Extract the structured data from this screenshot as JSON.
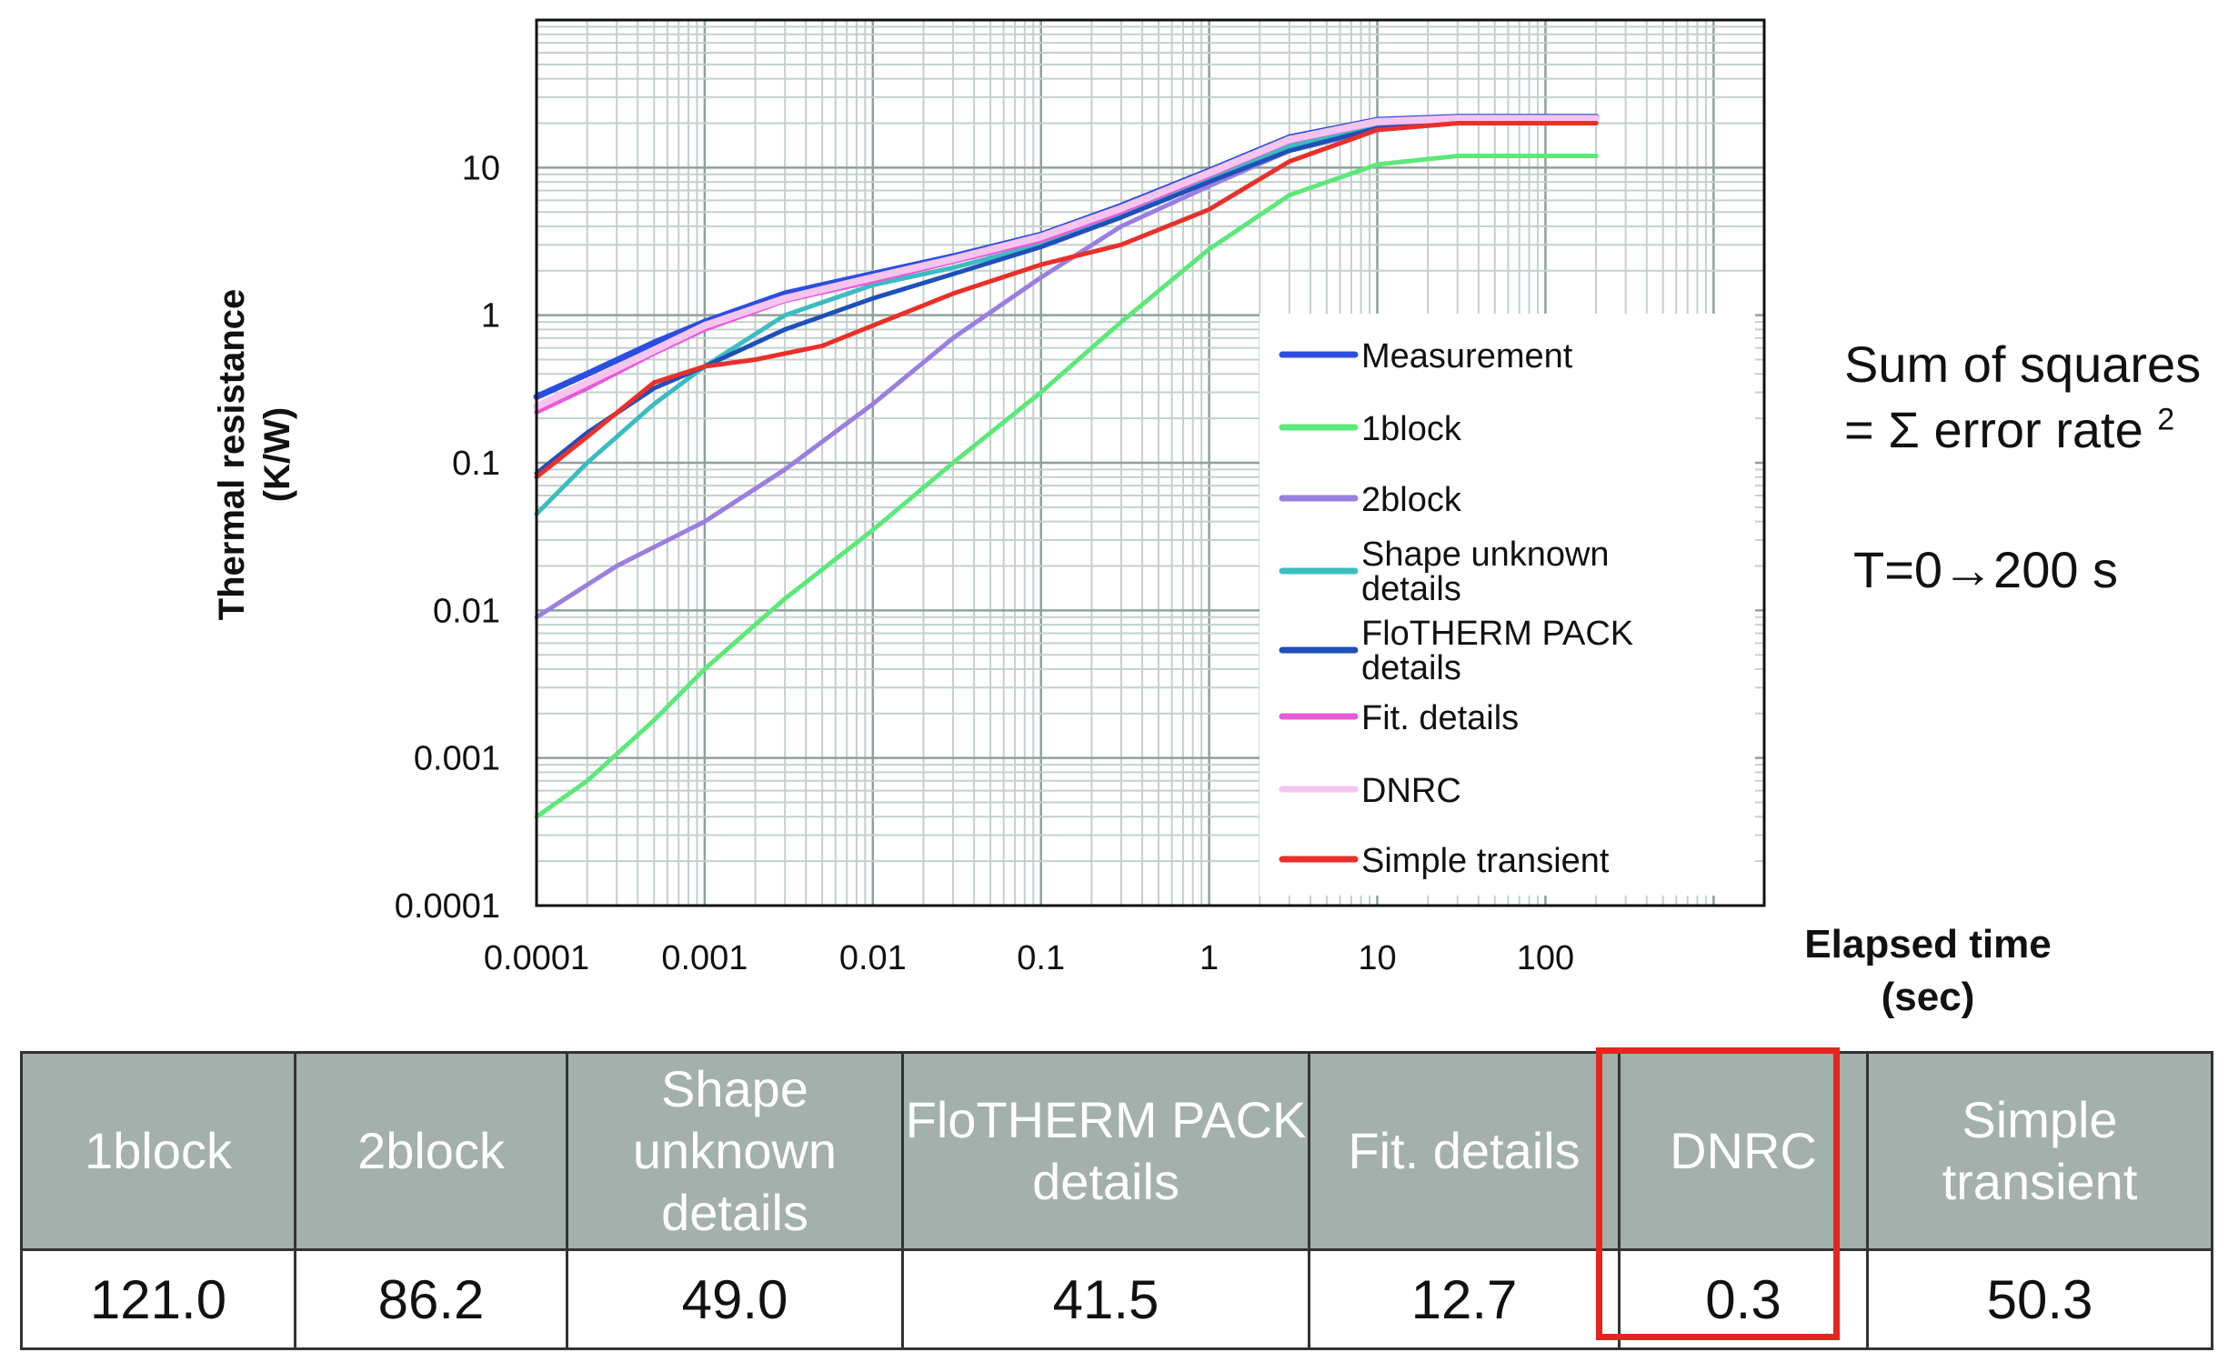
{
  "chart_data": {
    "type": "line",
    "xscale": "log",
    "yscale": "log",
    "xlim": [
      0.0001,
      2000
    ],
    "ylim": [
      0.0001,
      100
    ],
    "xticks": [
      0.0001,
      0.001,
      0.01,
      0.1,
      1,
      10,
      100
    ],
    "xtick_labels": [
      "0.0001",
      "0.001",
      "0.01",
      "0.1",
      "1",
      "10",
      "100"
    ],
    "yticks": [
      0.0001,
      0.001,
      0.01,
      0.1,
      1,
      10
    ],
    "ytick_labels": [
      "0.0001",
      "0.001",
      "0.01",
      "0.1",
      "1",
      "10"
    ],
    "xlabel": "Elapsed time (sec)",
    "ylabel_lines": [
      "Thermal resistance",
      "(K/W)"
    ],
    "grid": true,
    "legend_position": "bottom-right",
    "series": [
      {
        "name": "Measurement",
        "color": "#2b4de0",
        "x": [
          0.0001,
          0.0002,
          0.0005,
          0.001,
          0.003,
          0.01,
          0.03,
          0.1,
          0.3,
          1,
          3,
          10,
          30,
          100,
          200
        ],
        "y": [
          0.28,
          0.4,
          0.65,
          0.9,
          1.4,
          1.9,
          2.5,
          3.5,
          5.5,
          9.5,
          16,
          21,
          22,
          22,
          22
        ]
      },
      {
        "name": "1block",
        "color": "#5ce87a",
        "x": [
          0.0001,
          0.0002,
          0.0005,
          0.001,
          0.003,
          0.01,
          0.03,
          0.1,
          0.3,
          1,
          3,
          10,
          30,
          100,
          200
        ],
        "y": [
          0.0004,
          0.0007,
          0.0018,
          0.004,
          0.012,
          0.035,
          0.1,
          0.3,
          0.9,
          2.8,
          6.5,
          10.5,
          12,
          12,
          12
        ]
      },
      {
        "name": "2block",
        "color": "#9b7fe0",
        "x": [
          0.0001,
          0.0003,
          0.001,
          0.003,
          0.01,
          0.03,
          0.1,
          0.3,
          1,
          3,
          10,
          30,
          100,
          200
        ],
        "y": [
          0.009,
          0.02,
          0.04,
          0.09,
          0.25,
          0.7,
          1.8,
          4,
          7.5,
          13,
          18,
          20,
          20,
          20
        ]
      },
      {
        "name": "Shape unknown details",
        "color": "#3cbcc0",
        "x": [
          0.0001,
          0.0002,
          0.0005,
          0.001,
          0.003,
          0.01,
          0.03,
          0.1,
          0.3,
          1,
          3,
          10,
          30,
          100,
          200
        ],
        "y": [
          0.045,
          0.1,
          0.25,
          0.45,
          1.0,
          1.6,
          2.1,
          3.0,
          4.8,
          8.5,
          14,
          19,
          20,
          20,
          20
        ]
      },
      {
        "name": "FloTHERM PACK details",
        "color": "#1f4fb8",
        "x": [
          0.0001,
          0.0002,
          0.0005,
          0.001,
          0.003,
          0.01,
          0.03,
          0.1,
          0.3,
          1,
          3,
          10,
          30,
          100,
          200
        ],
        "y": [
          0.085,
          0.16,
          0.32,
          0.45,
          0.8,
          1.3,
          1.9,
          2.9,
          4.6,
          8,
          13,
          18.5,
          20,
          20,
          20
        ]
      },
      {
        "name": "Fit. details",
        "color": "#e85ad8",
        "x": [
          0.0001,
          0.0002,
          0.0005,
          0.001,
          0.003,
          0.01,
          0.03,
          0.1,
          0.3,
          1,
          3,
          10,
          30,
          100,
          200
        ],
        "y": [
          0.22,
          0.32,
          0.55,
          0.8,
          1.25,
          1.7,
          2.3,
          3.2,
          5,
          8.8,
          15,
          20,
          21,
          21,
          21
        ]
      },
      {
        "name": "DNRC",
        "color": "#f5c4ef",
        "x": [
          0.0001,
          0.0002,
          0.0005,
          0.001,
          0.003,
          0.01,
          0.03,
          0.1,
          0.3,
          1,
          3,
          10,
          30,
          100,
          200
        ],
        "y": [
          0.24,
          0.35,
          0.58,
          0.85,
          1.3,
          1.8,
          2.4,
          3.4,
          5.3,
          9.2,
          15.5,
          20.5,
          21.5,
          21.5,
          21.5
        ]
      },
      {
        "name": "Simple transient",
        "color": "#e8302a",
        "x": [
          0.0001,
          0.0002,
          0.0005,
          0.001,
          0.002,
          0.005,
          0.01,
          0.03,
          0.1,
          0.3,
          1,
          3,
          10,
          30,
          100,
          200
        ],
        "y": [
          0.08,
          0.15,
          0.35,
          0.45,
          0.5,
          0.62,
          0.85,
          1.4,
          2.2,
          3.0,
          5.2,
          11,
          18,
          20,
          20,
          20
        ]
      }
    ]
  },
  "notes": {
    "line1": "Sum of squares",
    "line2": "= Σ error rate",
    "line2_sup": "2",
    "line3": "T=0→200 s"
  },
  "table": {
    "headers": [
      "1block",
      "2block",
      "Shape unknown details",
      "FloTHERM PACK details",
      "Fit. details",
      "DNRC",
      "Simple transient"
    ],
    "values": [
      "121.0",
      "86.2",
      "49.0",
      "41.5",
      "12.7",
      "0.3",
      "50.3"
    ],
    "highlighted": "DNRC",
    "highlight_color": "#e3261f",
    "header_bg": "#a3b0ab"
  }
}
